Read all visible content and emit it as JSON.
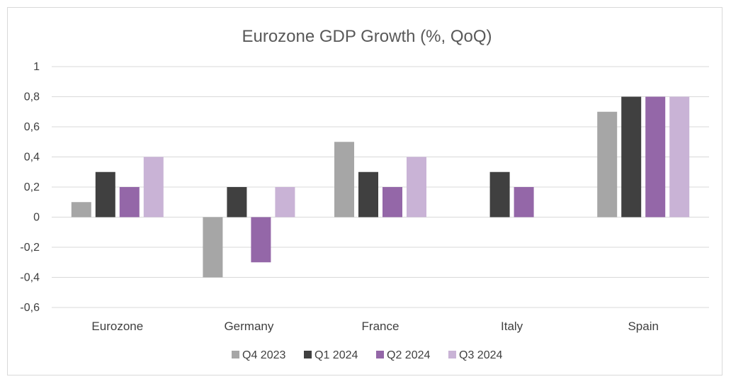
{
  "chart_data": {
    "type": "bar",
    "title": "Eurozone GDP Growth (%, QoQ)",
    "xlabel": "",
    "ylabel": "",
    "categories": [
      "Eurozone",
      "Germany",
      "France",
      "Italy",
      "Spain"
    ],
    "series": [
      {
        "name": "Q4 2023",
        "color": "#a6a6a6",
        "values": [
          0.1,
          -0.4,
          0.5,
          0.0,
          0.7
        ]
      },
      {
        "name": "Q1 2024",
        "color": "#404040",
        "values": [
          0.3,
          0.2,
          0.3,
          0.3,
          0.8
        ]
      },
      {
        "name": "Q2 2024",
        "color": "#9467a8",
        "values": [
          0.2,
          -0.3,
          0.2,
          0.2,
          0.8
        ]
      },
      {
        "name": "Q3 2024",
        "color": "#c9b3d6",
        "values": [
          0.4,
          0.2,
          0.4,
          0.0,
          0.8
        ]
      }
    ],
    "ylim": [
      -0.6,
      1.0
    ],
    "y_ticks": [
      1,
      0.8,
      0.6,
      0.4,
      0.2,
      0,
      -0.2,
      -0.4,
      -0.6
    ],
    "y_tick_labels": [
      "1",
      "0,8",
      "0,6",
      "0,4",
      "0,2",
      "0",
      "-0,2",
      "-0,4",
      "-0,6"
    ],
    "grid": true,
    "legend_position": "bottom"
  }
}
